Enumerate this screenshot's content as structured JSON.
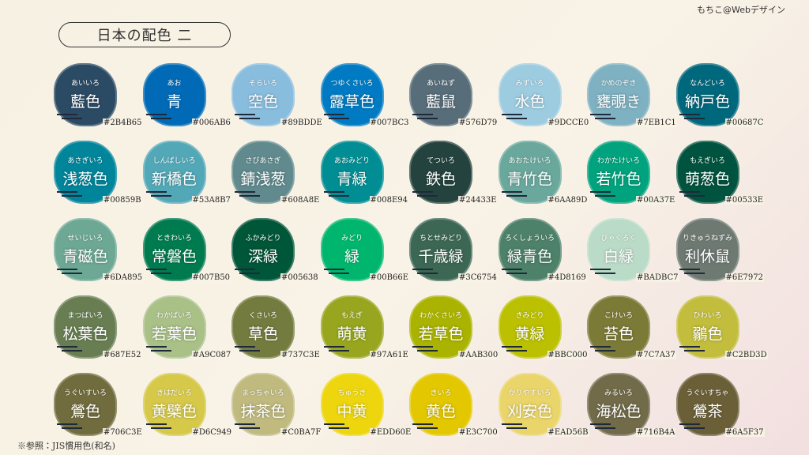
{
  "header": {
    "title": "日本の配色 二",
    "credit": "もちこ@Webデザイン"
  },
  "footnote": "※参照：JIS慣用色(和名)",
  "colors": [
    {
      "reading": "あいいろ",
      "name": "藍色",
      "hex": "#2B4B65"
    },
    {
      "reading": "あお",
      "name": "青",
      "hex": "#006AB6"
    },
    {
      "reading": "そらいろ",
      "name": "空色",
      "hex": "#89BDDE"
    },
    {
      "reading": "つゆくさいろ",
      "name": "露草色",
      "hex": "#007BC3"
    },
    {
      "reading": "あいねず",
      "name": "藍鼠",
      "hex": "#576D79"
    },
    {
      "reading": "みずいろ",
      "name": "水色",
      "hex": "#9DCCE0"
    },
    {
      "reading": "かめのぞき",
      "name": "甕覗き",
      "hex": "#7EB1C1"
    },
    {
      "reading": "なんどいろ",
      "name": "納戸色",
      "hex": "#00687C"
    },
    {
      "reading": "あさぎいろ",
      "name": "浅葱色",
      "hex": "#00859B"
    },
    {
      "reading": "しんばしいろ",
      "name": "新橋色",
      "hex": "#53A8B7"
    },
    {
      "reading": "さびあさぎ",
      "name": "錆浅葱",
      "hex": "#608A8E"
    },
    {
      "reading": "あおみどり",
      "name": "青緑",
      "hex": "#008E94"
    },
    {
      "reading": "てついろ",
      "name": "鉄色",
      "hex": "#24433E"
    },
    {
      "reading": "あおたけいろ",
      "name": "青竹色",
      "hex": "#6AA89D"
    },
    {
      "reading": "わかたけいろ",
      "name": "若竹色",
      "hex": "#00A37E"
    },
    {
      "reading": "もえぎいろ",
      "name": "萌葱色",
      "hex": "#00533E"
    },
    {
      "reading": "せいじいろ",
      "name": "青磁色",
      "hex": "#6DA895"
    },
    {
      "reading": "ときわいろ",
      "name": "常磐色",
      "hex": "#007B50"
    },
    {
      "reading": "ふかみどり",
      "name": "深緑",
      "hex": "#005638"
    },
    {
      "reading": "みどり",
      "name": "緑",
      "hex": "#00B66E"
    },
    {
      "reading": "ちとせみどり",
      "name": "千歳緑",
      "hex": "#3C6754"
    },
    {
      "reading": "ろくしょういろ",
      "name": "緑青色",
      "hex": "#4D8169"
    },
    {
      "reading": "びゃくろく",
      "name": "白緑",
      "hex": "#BADBC7"
    },
    {
      "reading": "りきゅうねずみ",
      "name": "利休鼠",
      "hex": "#6E7972"
    },
    {
      "reading": "まつばいろ",
      "name": "松葉色",
      "hex": "#687E52"
    },
    {
      "reading": "わかばいろ",
      "name": "若葉色",
      "hex": "#A9C087"
    },
    {
      "reading": "くさいろ",
      "name": "草色",
      "hex": "#737C3E"
    },
    {
      "reading": "もえぎ",
      "name": "萌黄",
      "hex": "#97A61E"
    },
    {
      "reading": "わかくさいろ",
      "name": "若草色",
      "hex": "#AAB300"
    },
    {
      "reading": "きみどり",
      "name": "黄緑",
      "hex": "#BBC000"
    },
    {
      "reading": "こけいろ",
      "name": "苔色",
      "hex": "#7C7A37"
    },
    {
      "reading": "ひわいろ",
      "name": "鶸色",
      "hex": "#C2BD3D"
    },
    {
      "reading": "うぐいすいろ",
      "name": "鶯色",
      "hex": "#706C3E"
    },
    {
      "reading": "きはだいろ",
      "name": "黄檗色",
      "hex": "#D6C949"
    },
    {
      "reading": "まっちゃいろ",
      "name": "抹茶色",
      "hex": "#C0BA7F"
    },
    {
      "reading": "ちゅうき",
      "name": "中黄",
      "hex": "#EDD60E"
    },
    {
      "reading": "きいろ",
      "name": "黄色",
      "hex": "#E3C700"
    },
    {
      "reading": "かりやすいろ",
      "name": "刈安色",
      "hex": "#EAD56B"
    },
    {
      "reading": "みるいろ",
      "name": "海松色",
      "hex": "#716B4A"
    },
    {
      "reading": "うぐいすちゃ",
      "name": "鶯茶",
      "hex": "#6A5F37"
    }
  ]
}
